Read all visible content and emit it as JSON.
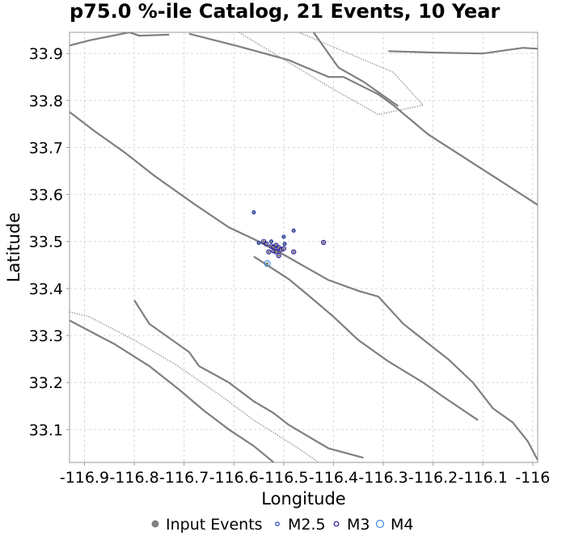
{
  "chart_data": {
    "type": "scatter",
    "title": "p75.0 %-ile Catalog, 21 Events, 10 Year",
    "xlabel": "Longitude",
    "ylabel": "Latitude",
    "xlim": [
      -116.93,
      -115.99
    ],
    "ylim": [
      33.03,
      33.945
    ],
    "grid": true,
    "x_ticks": [
      -116.9,
      -116.8,
      -116.7,
      -116.6,
      -116.5,
      -116.4,
      -116.3,
      -116.2,
      -116.1,
      -116.0
    ],
    "x_tick_labels": [
      "-116.9",
      "-116.8",
      "-116.7",
      "-116.6",
      "-116.5",
      "-116.4",
      "-116.3",
      "-116.2",
      "-116.1",
      "-116"
    ],
    "y_ticks": [
      33.1,
      33.2,
      33.3,
      33.4,
      33.5,
      33.6,
      33.7,
      33.8,
      33.9
    ],
    "y_tick_labels": [
      "33.1",
      "33.2",
      "33.3",
      "33.4",
      "33.5",
      "33.6",
      "33.7",
      "33.8",
      "33.9"
    ],
    "legend": {
      "placement": "bottom",
      "entries": [
        {
          "label": "Input Events",
          "symbol": "filled-circle",
          "color": "#808080"
        },
        {
          "label": "M2.5",
          "symbol": "open-circle",
          "color": "#1a3ab0"
        },
        {
          "label": "M3",
          "symbol": "open-circle",
          "color": "#23189a"
        },
        {
          "label": "M4",
          "symbol": "open-circle",
          "color": "#3d8be0"
        }
      ]
    },
    "fault_traces": [
      {
        "style": "solid",
        "points": [
          [
            -116.93,
            33.917
          ],
          [
            -116.89,
            33.928
          ],
          [
            -116.81,
            33.945
          ],
          [
            -116.79,
            33.938
          ],
          [
            -116.73,
            33.94
          ]
        ]
      },
      {
        "style": "solid",
        "points": [
          [
            -116.69,
            33.942
          ],
          [
            -116.59,
            33.915
          ],
          [
            -116.49,
            33.886
          ],
          [
            -116.41,
            33.85
          ],
          [
            -116.38,
            33.85
          ],
          [
            -116.31,
            33.813
          ],
          [
            -116.28,
            33.79
          ],
          [
            -116.21,
            33.728
          ],
          [
            -115.99,
            33.578
          ]
        ]
      },
      {
        "style": "solid",
        "points": [
          [
            -116.44,
            33.945
          ],
          [
            -116.39,
            33.87
          ],
          [
            -116.34,
            33.84
          ],
          [
            -116.27,
            33.788
          ]
        ]
      },
      {
        "style": "solid",
        "points": [
          [
            -116.96,
            33.8
          ],
          [
            -116.88,
            33.735
          ],
          [
            -116.82,
            33.69
          ],
          [
            -116.76,
            33.64
          ],
          [
            -116.68,
            33.58
          ],
          [
            -116.61,
            33.53
          ],
          [
            -116.56,
            33.505
          ],
          [
            -116.51,
            33.478
          ],
          [
            -116.46,
            33.448
          ],
          [
            -116.41,
            33.418
          ],
          [
            -116.35,
            33.395
          ],
          [
            -116.31,
            33.383
          ],
          [
            -116.26,
            33.325
          ],
          [
            -116.2,
            33.275
          ],
          [
            -116.17,
            33.25
          ],
          [
            -116.12,
            33.2
          ],
          [
            -116.08,
            33.145
          ],
          [
            -116.04,
            33.115
          ],
          [
            -116.01,
            33.075
          ],
          [
            -115.99,
            33.035
          ]
        ]
      },
      {
        "style": "solid",
        "points": [
          [
            -116.56,
            33.468
          ],
          [
            -116.49,
            33.42
          ],
          [
            -116.45,
            33.385
          ],
          [
            -116.4,
            33.34
          ],
          [
            -116.35,
            33.29
          ],
          [
            -116.29,
            33.245
          ],
          [
            -116.22,
            33.2
          ],
          [
            -116.18,
            33.17
          ],
          [
            -116.11,
            33.12
          ]
        ]
      },
      {
        "style": "solid",
        "points": [
          [
            -116.29,
            33.905
          ],
          [
            -116.2,
            33.902
          ],
          [
            -116.1,
            33.9
          ],
          [
            -116.02,
            33.912
          ],
          [
            -115.99,
            33.91
          ]
        ]
      },
      {
        "style": "solid",
        "points": [
          [
            -116.8,
            33.375
          ],
          [
            -116.77,
            33.325
          ],
          [
            -116.69,
            33.265
          ],
          [
            -116.67,
            33.235
          ],
          [
            -116.61,
            33.2
          ],
          [
            -116.56,
            33.16
          ],
          [
            -116.52,
            33.135
          ],
          [
            -116.49,
            33.11
          ],
          [
            -116.41,
            33.06
          ],
          [
            -116.34,
            33.04
          ]
        ]
      },
      {
        "style": "solid",
        "points": [
          [
            -116.93,
            33.332
          ],
          [
            -116.84,
            33.282
          ],
          [
            -116.77,
            33.235
          ],
          [
            -116.71,
            33.185
          ],
          [
            -116.66,
            33.14
          ],
          [
            -116.61,
            33.1
          ],
          [
            -116.56,
            33.065
          ],
          [
            -116.52,
            33.03
          ]
        ]
      },
      {
        "style": "dotted",
        "points": [
          [
            -116.93,
            33.35
          ],
          [
            -116.89,
            33.34
          ],
          [
            -116.8,
            33.29
          ],
          [
            -116.72,
            33.24
          ],
          [
            -116.63,
            33.175
          ],
          [
            -116.56,
            33.12
          ],
          [
            -116.47,
            33.06
          ],
          [
            -116.43,
            33.03
          ]
        ]
      },
      {
        "style": "dotted",
        "points": [
          [
            -116.59,
            33.945
          ],
          [
            -116.41,
            33.83
          ],
          [
            -116.31,
            33.77
          ],
          [
            -116.22,
            33.79
          ],
          [
            -116.28,
            33.86
          ],
          [
            -116.47,
            33.945
          ]
        ]
      }
    ],
    "events": [
      {
        "x": -116.56,
        "y": 33.562,
        "mag": "M2.5"
      },
      {
        "x": -116.48,
        "y": 33.523,
        "mag": "M2.5"
      },
      {
        "x": -116.5,
        "y": 33.51,
        "mag": "M2.5"
      },
      {
        "x": -116.55,
        "y": 33.497,
        "mag": "M2.5"
      },
      {
        "x": -116.54,
        "y": 33.5,
        "mag": "M3"
      },
      {
        "x": -116.535,
        "y": 33.495,
        "mag": "M3"
      },
      {
        "x": -116.525,
        "y": 33.49,
        "mag": "M3"
      },
      {
        "x": -116.52,
        "y": 33.488,
        "mag": "M3"
      },
      {
        "x": -116.515,
        "y": 33.492,
        "mag": "M3"
      },
      {
        "x": -116.51,
        "y": 33.487,
        "mag": "M3"
      },
      {
        "x": -116.52,
        "y": 33.48,
        "mag": "M3"
      },
      {
        "x": -116.515,
        "y": 33.478,
        "mag": "M3"
      },
      {
        "x": -116.505,
        "y": 33.483,
        "mag": "M3"
      },
      {
        "x": -116.5,
        "y": 33.485,
        "mag": "M3"
      },
      {
        "x": -116.53,
        "y": 33.478,
        "mag": "M3"
      },
      {
        "x": -116.51,
        "y": 33.47,
        "mag": "M3"
      },
      {
        "x": -116.48,
        "y": 33.478,
        "mag": "M3"
      },
      {
        "x": -116.42,
        "y": 33.498,
        "mag": "M3"
      },
      {
        "x": -116.533,
        "y": 33.453,
        "mag": "M4"
      },
      {
        "x": -116.525,
        "y": 33.5,
        "mag": "M2.5"
      },
      {
        "x": -116.498,
        "y": 33.495,
        "mag": "M2.5"
      }
    ]
  }
}
